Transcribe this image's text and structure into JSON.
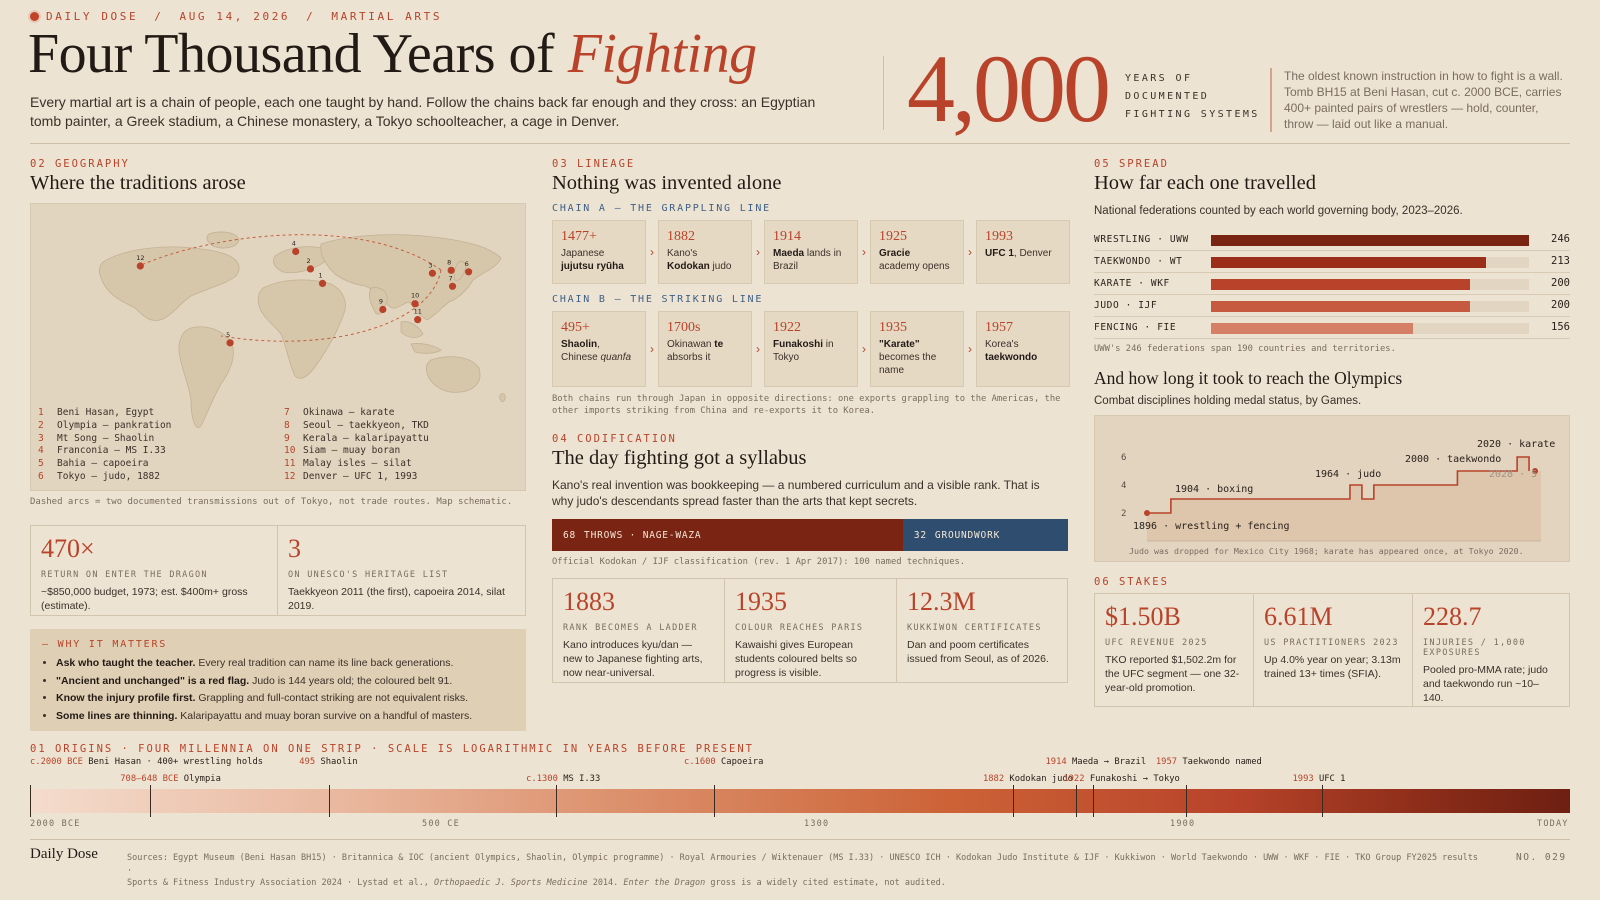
{
  "header": {
    "kicker": [
      "DAILY DOSE",
      "AUG 14, 2026",
      "MARTIAL ARTS"
    ],
    "kicker_sep": "/",
    "title_main": "Four Thousand Years of",
    "title_accent": "Fighting",
    "intro": "Every martial art is a chain of people, each one taught by hand. Follow the chains back far enough and they cross: an Egyptian tomb painter, a Greek stadium, a Chinese monastery, a Tokyo schoolteacher, a cage in Denver.",
    "big_number": "4,000",
    "big_label": [
      "YEARS OF",
      "DOCUMENTED",
      "FIGHTING SYSTEMS"
    ],
    "note": "The oldest known instruction in how to fight is a wall. Tomb BH15 at Beni Hasan, cut c. 2000 BCE, carries 400+ painted pairs of wrestlers — hold, counter, throw — laid out like a manual."
  },
  "geography": {
    "label": "02 GEOGRAPHY",
    "title": "Where the traditions arose",
    "legend_left": [
      {
        "n": "1",
        "t": "Beni Hasan, Egypt"
      },
      {
        "n": "2",
        "t": "Olympia — pankration"
      },
      {
        "n": "3",
        "t": "Mt Song — Shaolin"
      },
      {
        "n": "4",
        "t": "Franconia — MS I.33"
      },
      {
        "n": "5",
        "t": "Bahia — capoeira"
      },
      {
        "n": "6",
        "t": "Tokyo — judo, 1882"
      }
    ],
    "legend_right": [
      {
        "n": "7",
        "t": "Okinawa — karate"
      },
      {
        "n": "8",
        "t": "Seoul — taekkyeon, TKD"
      },
      {
        "n": "9",
        "t": "Kerala — kalaripayattu"
      },
      {
        "n": "10",
        "t": "Siam — muay boran"
      },
      {
        "n": "11",
        "t": "Malay isles — silat"
      },
      {
        "n": "12",
        "t": "Denver — UFC 1, 1993"
      }
    ],
    "map_note": "Dashed arcs = two documented transmissions out of Tokyo, not trade routes. Map schematic.",
    "stats": [
      {
        "num": "470×",
        "cap": "RETURN ON ENTER THE DRAGON",
        "txt": "~$850,000 budget, 1973; est. $400m+ gross (estimate)."
      },
      {
        "num": "3",
        "cap": "ON UNESCO'S HERITAGE LIST",
        "txt": "Taekkyeon 2011 (the first), capoeira 2014, silat 2019."
      }
    ]
  },
  "why": {
    "heading": "— WHY IT MATTERS",
    "items": [
      {
        "b": "Ask who taught the teacher.",
        "t": " Every real tradition can name its line back generations."
      },
      {
        "b": "\"Ancient and unchanged\" is a red flag.",
        "t": " Judo is 144 years old; the coloured belt 91."
      },
      {
        "b": "Know the injury profile first.",
        "t": " Grappling and full-contact striking are not equivalent risks."
      },
      {
        "b": "Some lines are thinning.",
        "t": " Kalaripayattu and muay boran survive on a handful of masters."
      }
    ]
  },
  "lineage": {
    "label": "03 LINEAGE",
    "title": "Nothing was invented alone",
    "chain_a_title": "CHAIN A — THE GRAPPLING LINE",
    "chain_b_title": "CHAIN B — THE STRIKING LINE",
    "note": "Both chains run through Japan in opposite directions: one exports grappling to the Americas, the other imports striking from China and re-exports it to Korea."
  },
  "codification": {
    "label": "04 CODIFICATION",
    "title": "The day fighting got a syllabus",
    "text": "Kano's real invention was bookkeeping — a numbered curriculum and a visible rank. That is why judo's descendants spread faster than the arts that kept secrets.",
    "bar": [
      {
        "n": "68",
        "label": "THROWS · NAGE-WAZA",
        "value": 68,
        "color": "#7a2414"
      },
      {
        "n": "32",
        "label": "GROUNDWORK",
        "value": 32,
        "color": "#2f4d6e"
      }
    ],
    "bar_note": "Official Kodokan / IJF classification (rev. 1 Apr 2017): 100 named techniques.",
    "stats": [
      {
        "num": "1883",
        "cap": "RANK BECOMES A LADDER",
        "txt": "Kano introduces kyu/dan — new to Japanese fighting arts, now near-universal."
      },
      {
        "num": "1935",
        "cap": "COLOUR REACHES PARIS",
        "txt": "Kawaishi gives European students coloured belts so progress is visible."
      },
      {
        "num": "12.3M",
        "cap": "KUKKIWON CERTIFICATES",
        "txt": "Dan and poom certificates issued from Seoul, as of 2026."
      }
    ]
  },
  "spread": {
    "label": "05 SPREAD",
    "title": "How far each one travelled",
    "subtitle": "National federations counted by each world governing body, 2023–2026.",
    "footnote": "UWW's 246 federations span 190 countries and territories.",
    "olympics_title": "And how long it took to reach the Olympics",
    "olympics_subtitle": "Combat disciplines holding medal status, by Games.",
    "olympics_note": "Judo was dropped for Mexico City 1968; karate has appeared once, at Tokyo 2020."
  },
  "stakes": {
    "label": "06 STAKES",
    "stats": [
      {
        "num": "$1.50B",
        "cap": "UFC REVENUE 2025",
        "txt": "TKO reported $1,502.2m for the UFC segment — one 32-year-old promotion."
      },
      {
        "num": "6.61M",
        "cap": "US PRACTITIONERS 2023",
        "txt": "Up 4.0% year on year; 3.13m trained 13+ times (SFIA)."
      },
      {
        "num": "228.7",
        "cap": "INJURIES / 1,000 EXPOSURES",
        "txt": "Pooled pro-MMA rate; judo and taekwondo run ~10–140."
      }
    ]
  },
  "timeline": {
    "label": "01 ORIGINS · FOUR MILLENNIA ON ONE STRIP · SCALE IS LOGARITHMIC IN YEARS BEFORE PRESENT",
    "axis": [
      "2000 BCE",
      "500 CE",
      "1300",
      "1900",
      "TODAY"
    ]
  },
  "footer": {
    "brand": "Daily Dose",
    "sources_1": "Sources: Egypt Museum (Beni Hasan BH15) · Britannica & IOC (ancient Olympics, Shaolin, Olympic programme) · Royal Armouries / Wiktenauer (MS I.33) · UNESCO ICH · Kodokan Judo Institute & IJF · Kukkiwon · World Taekwondo · UWW · WKF · FIE · TKO Group FY2025 results ·",
    "sources_2a": "Sports & Fitness Industry Association 2024 · Lystad et al., ",
    "sources_2b": "Orthopaedic J. Sports Medicine",
    "sources_2c": " 2014. ",
    "sources_2d": "Enter the Dragon",
    "sources_2e": " gross is a widely cited estimate, not audited.",
    "number": "NO. 029"
  },
  "colors": {
    "accent": "#b8432a",
    "blue": "#3d5f86",
    "background": "#ede3d2"
  },
  "chart_data": [
    {
      "type": "table",
      "title": "CHAIN A — THE GRAPPLING LINE",
      "items": [
        {
          "year": "1477+",
          "text": "Japanese jujutsu ryūha"
        },
        {
          "year": "1882",
          "text": "Kano's Kodokan judo"
        },
        {
          "year": "1914",
          "text": "Maeda lands in Brazil"
        },
        {
          "year": "1925",
          "text": "Gracie academy opens"
        },
        {
          "year": "1993",
          "text": "UFC 1, Denver"
        }
      ]
    },
    {
      "type": "table",
      "title": "CHAIN B — THE STRIKING LINE",
      "items": [
        {
          "year": "495+",
          "text": "Shaolin, Chinese quanfa"
        },
        {
          "year": "1700s",
          "text": "Okinawan te absorbs it"
        },
        {
          "year": "1922",
          "text": "Funakoshi in Tokyo"
        },
        {
          "year": "1935",
          "text": "\"Karate\" becomes the name"
        },
        {
          "year": "1957",
          "text": "Korea's taekwondo"
        }
      ]
    },
    {
      "type": "bar",
      "title": "How far each one travelled",
      "categories": [
        "WRESTLING · UWW",
        "TAEKWONDO · WT",
        "KARATE · WKF",
        "JUDO · IJF",
        "FENCING · FIE"
      ],
      "values": [
        246,
        213,
        200,
        200,
        156
      ],
      "colors": [
        "#7a2414",
        "#9a2e18",
        "#b8432a",
        "#c65a40",
        "#d58066"
      ],
      "ylim": [
        0,
        246
      ]
    },
    {
      "type": "line",
      "title": "And how long it took to reach the Olympics",
      "x": [
        1896,
        1904,
        1964,
        1968,
        1972,
        2000,
        2020,
        2024
      ],
      "y": [
        2,
        3,
        4,
        3,
        4,
        5,
        6,
        5
      ],
      "yticks": [
        2,
        4,
        6
      ],
      "xlim": [
        1896,
        2028
      ],
      "ylim": [
        1,
        7
      ],
      "annotations": [
        {
          "x": 1896,
          "y": 2,
          "text": "1896 · wrestling + fencing"
        },
        {
          "x": 1904,
          "y": 3,
          "text": "1904 · boxing"
        },
        {
          "x": 1964,
          "y": 4,
          "text": "1964 · judo"
        },
        {
          "x": 2000,
          "y": 5,
          "text": "2000 · taekwondo"
        },
        {
          "x": 2020,
          "y": 6,
          "text": "2020 · karate"
        },
        {
          "x": 2028,
          "y": 5,
          "text": "2028 · 5"
        }
      ]
    },
    {
      "type": "scatter",
      "title": "01 ORIGINS",
      "scale": "log years before present",
      "events": [
        {
          "year": -2000,
          "prefix": "c.2000 BCE",
          "text": "Beni Hasan · 400+ wrestling holds"
        },
        {
          "year": -708,
          "prefix": "708–648 BCE",
          "text": "Olympia"
        },
        {
          "year": 495,
          "prefix": "495",
          "text": "Shaolin"
        },
        {
          "year": 1300,
          "prefix": "c.1300",
          "text": "MS I.33"
        },
        {
          "year": 1600,
          "prefix": "c.1600",
          "text": "Capoeira"
        },
        {
          "year": 1882,
          "prefix": "1882",
          "text": "Kodokan judo"
        },
        {
          "year": 1914,
          "prefix": "1914",
          "text": "Maeda → Brazil"
        },
        {
          "year": 1922,
          "prefix": "1922",
          "text": "Funakoshi → Tokyo"
        },
        {
          "year": 1957,
          "prefix": "1957",
          "text": "Taekwondo named"
        },
        {
          "year": 1993,
          "prefix": "1993",
          "text": "UFC 1"
        }
      ]
    },
    {
      "type": "scatter",
      "title": "Where the traditions arose",
      "points": [
        {
          "n": "1",
          "lon": 31,
          "lat": 28
        },
        {
          "n": "2",
          "lon": 22,
          "lat": 38
        },
        {
          "n": "3",
          "lon": 113,
          "lat": 35
        },
        {
          "n": "4",
          "lon": 11,
          "lat": 50
        },
        {
          "n": "5",
          "lon": -38,
          "lat": -13
        },
        {
          "n": "6",
          "lon": 140,
          "lat": 36
        },
        {
          "n": "7",
          "lon": 128,
          "lat": 26
        },
        {
          "n": "8",
          "lon": 127,
          "lat": 37
        },
        {
          "n": "9",
          "lon": 76,
          "lat": 10
        },
        {
          "n": "10",
          "lon": 100,
          "lat": 14
        },
        {
          "n": "11",
          "lon": 102,
          "lat": 3
        },
        {
          "n": "12",
          "lon": -105,
          "lat": 40
        }
      ]
    }
  ]
}
